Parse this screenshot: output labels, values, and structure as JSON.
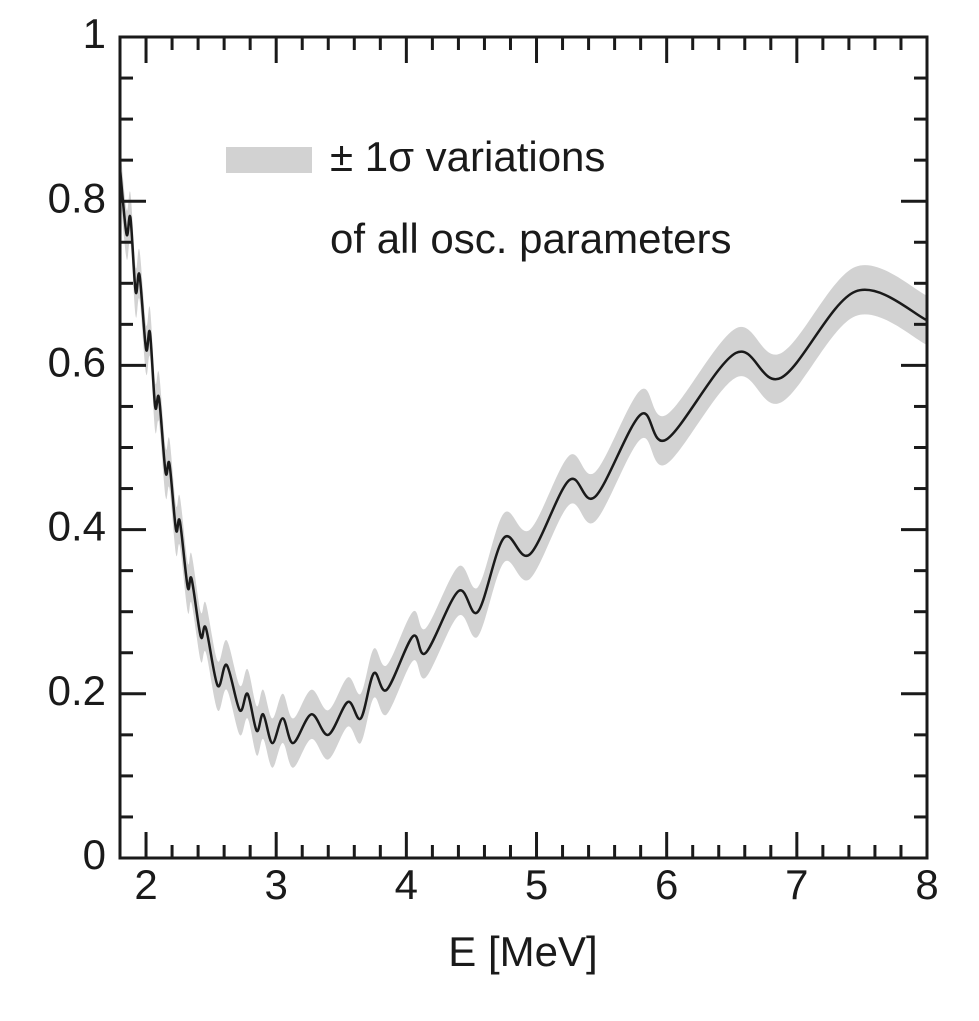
{
  "chart_data": {
    "type": "line",
    "xlabel": "E [MeV]",
    "annotation": "of all osc. parameters",
    "xlim": [
      1.8,
      8
    ],
    "ylim": [
      0,
      1
    ],
    "xticks": [
      2,
      3,
      4,
      5,
      6,
      7,
      8
    ],
    "yticks": [
      0,
      0.2,
      0.4,
      0.6,
      0.8,
      1
    ],
    "x": [
      1.8,
      1.85,
      1.88,
      1.92,
      1.95,
      2.0,
      2.03,
      2.07,
      2.1,
      2.15,
      2.18,
      2.23,
      2.26,
      2.32,
      2.35,
      2.42,
      2.46,
      2.55,
      2.62,
      2.72,
      2.78,
      2.85,
      2.9,
      2.97,
      3.05,
      3.13,
      3.27,
      3.4,
      3.55,
      3.65,
      3.75,
      3.85,
      4.05,
      4.15,
      4.4,
      4.55,
      4.75,
      4.95,
      5.25,
      5.45,
      5.8,
      6.0,
      6.53,
      6.88,
      7.45,
      8
    ],
    "series": [
      {
        "name": "± 1σ variations",
        "type": "band",
        "color": "#d2d2d2",
        "upper": [
          0.87,
          0.79,
          0.81,
          0.72,
          0.74,
          0.65,
          0.67,
          0.58,
          0.59,
          0.5,
          0.51,
          0.43,
          0.44,
          0.36,
          0.37,
          0.3,
          0.31,
          0.24,
          0.265,
          0.21,
          0.23,
          0.185,
          0.205,
          0.17,
          0.2,
          0.17,
          0.205,
          0.18,
          0.22,
          0.2,
          0.255,
          0.235,
          0.3,
          0.28,
          0.355,
          0.33,
          0.42,
          0.4,
          0.49,
          0.47,
          0.57,
          0.54,
          0.645,
          0.615,
          0.72,
          0.685
        ],
        "lower": [
          0.81,
          0.73,
          0.75,
          0.66,
          0.68,
          0.59,
          0.61,
          0.52,
          0.53,
          0.44,
          0.45,
          0.37,
          0.38,
          0.3,
          0.31,
          0.24,
          0.25,
          0.18,
          0.205,
          0.15,
          0.17,
          0.125,
          0.145,
          0.11,
          0.14,
          0.11,
          0.145,
          0.12,
          0.16,
          0.14,
          0.195,
          0.175,
          0.24,
          0.22,
          0.295,
          0.27,
          0.36,
          0.34,
          0.43,
          0.41,
          0.51,
          0.48,
          0.585,
          0.555,
          0.66,
          0.625
        ]
      },
      {
        "type": "line",
        "color": "#1a1a1a",
        "values": [
          0.84,
          0.76,
          0.78,
          0.69,
          0.71,
          0.62,
          0.64,
          0.55,
          0.56,
          0.47,
          0.48,
          0.4,
          0.41,
          0.33,
          0.34,
          0.27,
          0.28,
          0.21,
          0.235,
          0.18,
          0.2,
          0.155,
          0.175,
          0.14,
          0.17,
          0.14,
          0.175,
          0.15,
          0.19,
          0.17,
          0.225,
          0.205,
          0.27,
          0.25,
          0.325,
          0.3,
          0.39,
          0.37,
          0.46,
          0.44,
          0.54,
          0.51,
          0.615,
          0.585,
          0.69,
          0.655
        ]
      }
    ]
  }
}
